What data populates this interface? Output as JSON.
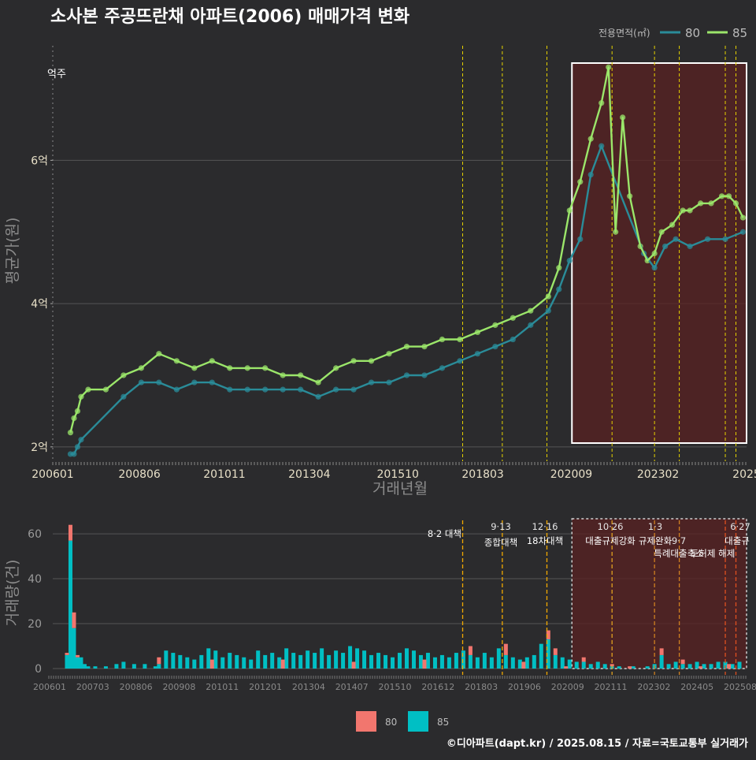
{
  "title": "소사본 주공뜨란채 아파트(2006) 매매가격 변화",
  "legend": {
    "title": "전용면적(㎡)",
    "items": [
      {
        "label": "80",
        "color": "#2a8c99"
      },
      {
        "label": "85",
        "color": "#9be66a"
      }
    ]
  },
  "bar_legend": [
    {
      "label": "80",
      "color": "#f2766e"
    },
    {
      "label": "85",
      "color": "#00bfc4"
    }
  ],
  "footer": "©디아파트(dapt.kr) / 2025.08.15 / 자료=국토교통부 실거래가",
  "top_side_label": "억주",
  "chart_data": [
    {
      "type": "line",
      "title": "소사본 주공뜨란채 아파트(2006) 매매가격 변화",
      "xlabel": "거래년월",
      "ylabel": "평균가(원)",
      "x_ticks": [
        "200601",
        "200806",
        "201011",
        "201304",
        "201510",
        "201803",
        "202009",
        "202302",
        "2025"
      ],
      "y_ticks": [
        "2억",
        "4억",
        "6억"
      ],
      "y_tick_values": [
        2,
        4,
        6
      ],
      "ylim": [
        1.8,
        7.6
      ],
      "xlim": [
        2006.0,
        2025.6
      ],
      "highlight_range": [
        2020.6,
        2025.6
      ],
      "policy_lines": [
        2017.58,
        2018.7,
        2019.96,
        2021.8,
        2023.0,
        2023.7,
        2025.0,
        2025.3
      ],
      "series": [
        {
          "name": "80",
          "color": "#2a8c99",
          "x": [
            2006.5,
            2006.6,
            2006.7,
            2006.8,
            2008.0,
            2008.5,
            2009.0,
            2009.5,
            2010.0,
            2010.5,
            2011.0,
            2011.5,
            2012.0,
            2012.5,
            2013.0,
            2013.5,
            2014.0,
            2014.5,
            2015.0,
            2015.5,
            2016.0,
            2016.5,
            2017.0,
            2017.5,
            2018.0,
            2018.5,
            2019.0,
            2019.5,
            2020.0,
            2020.3,
            2020.6,
            2020.9,
            2021.2,
            2021.5,
            2022.7,
            2023.0,
            2023.3,
            2023.6,
            2024.0,
            2024.5,
            2025.0,
            2025.5
          ],
          "y": [
            1.9,
            1.9,
            2.0,
            2.1,
            2.7,
            2.9,
            2.9,
            2.8,
            2.9,
            2.9,
            2.8,
            2.8,
            2.8,
            2.8,
            2.8,
            2.7,
            2.8,
            2.8,
            2.9,
            2.9,
            3.0,
            3.0,
            3.1,
            3.2,
            3.3,
            3.4,
            3.5,
            3.7,
            3.9,
            4.2,
            4.6,
            4.9,
            5.8,
            6.2,
            4.7,
            4.5,
            4.8,
            4.9,
            4.8,
            4.9,
            4.9,
            5.0
          ]
        },
        {
          "name": "85",
          "color": "#9be66a",
          "x": [
            2006.5,
            2006.6,
            2006.7,
            2006.8,
            2007.0,
            2007.5,
            2008.0,
            2008.5,
            2009.0,
            2009.5,
            2010.0,
            2010.5,
            2011.0,
            2011.5,
            2012.0,
            2012.5,
            2013.0,
            2013.5,
            2014.0,
            2014.5,
            2015.0,
            2015.5,
            2016.0,
            2016.5,
            2017.0,
            2017.5,
            2018.0,
            2018.5,
            2019.0,
            2019.5,
            2020.0,
            2020.3,
            2020.6,
            2020.9,
            2021.2,
            2021.5,
            2021.7,
            2021.9,
            2022.1,
            2022.3,
            2022.6,
            2022.8,
            2023.0,
            2023.2,
            2023.5,
            2023.8,
            2024.0,
            2024.3,
            2024.6,
            2024.9,
            2025.1,
            2025.3,
            2025.5
          ],
          "y": [
            2.2,
            2.4,
            2.5,
            2.7,
            2.8,
            2.8,
            3.0,
            3.1,
            3.3,
            3.2,
            3.1,
            3.2,
            3.1,
            3.1,
            3.1,
            3.0,
            3.0,
            2.9,
            3.1,
            3.2,
            3.2,
            3.3,
            3.4,
            3.4,
            3.5,
            3.5,
            3.6,
            3.7,
            3.8,
            3.9,
            4.1,
            4.5,
            5.3,
            5.7,
            6.3,
            6.8,
            7.3,
            5.0,
            6.6,
            5.5,
            4.8,
            4.6,
            4.7,
            5.0,
            5.1,
            5.3,
            5.3,
            5.4,
            5.4,
            5.5,
            5.5,
            5.4,
            5.2
          ]
        }
      ]
    },
    {
      "type": "bar",
      "xlabel": "",
      "ylabel": "거래량(건)",
      "x_ticks": [
        "200601",
        "200703",
        "200806",
        "200908",
        "201011",
        "201201",
        "201304",
        "201407",
        "201510",
        "201612",
        "201803",
        "201906",
        "202009",
        "202111",
        "202302",
        "202405",
        "202508"
      ],
      "y_ticks": [
        "0",
        "20",
        "40",
        "60"
      ],
      "y_tick_values": [
        0,
        20,
        40,
        60
      ],
      "ylim": [
        0,
        66
      ],
      "xlim": [
        2006.0,
        2025.6
      ],
      "highlight_range": [
        2020.6,
        2025.6
      ],
      "annotations": [
        {
          "date": "8·2",
          "label": "8·2 대책",
          "x": 2017.58
        },
        {
          "date": "9·13",
          "label": "종합대책",
          "x": 2018.7
        },
        {
          "date": "12·16",
          "label": "18차대책",
          "x": 2019.96
        },
        {
          "date": "10·26",
          "label": "대출규제강화",
          "x": 2021.8
        },
        {
          "date": "1·3",
          "label": "규제완화",
          "x": 2023.0
        },
        {
          "date": "9·7",
          "label": "특례대출축소",
          "x": 2023.7
        },
        {
          "date": "",
          "label": "토허제 해제",
          "x": 2025.0
        },
        {
          "date": "6·27",
          "label": "대출규",
          "x": 2025.3
        }
      ],
      "series": [
        {
          "name": "80",
          "color": "#f2766e",
          "x": [
            2006.4,
            2006.5,
            2006.6,
            2006.7,
            2009.0,
            2010.5,
            2012.5,
            2014.5,
            2016.5,
            2017.8,
            2018.8,
            2019.3,
            2020.0,
            2020.2,
            2020.5,
            2021.0,
            2021.8,
            2022.3,
            2023.2,
            2023.8,
            2024.3,
            2025.1
          ],
          "values": [
            1,
            7,
            7,
            1,
            3,
            4,
            4,
            3,
            4,
            4,
            5,
            3,
            4,
            3,
            1,
            2,
            1,
            1,
            3,
            2,
            1,
            2
          ]
        },
        {
          "name": "85",
          "color": "#00bfc4",
          "x": [
            2006.4,
            2006.5,
            2006.6,
            2006.7,
            2006.8,
            2006.9,
            2007.0,
            2007.2,
            2007.5,
            2007.8,
            2008.0,
            2008.3,
            2008.6,
            2008.9,
            2009.0,
            2009.2,
            2009.4,
            2009.6,
            2009.8,
            2010.0,
            2010.2,
            2010.4,
            2010.6,
            2010.8,
            2011.0,
            2011.2,
            2011.4,
            2011.6,
            2011.8,
            2012.0,
            2012.2,
            2012.4,
            2012.6,
            2012.8,
            2013.0,
            2013.2,
            2013.4,
            2013.6,
            2013.8,
            2014.0,
            2014.2,
            2014.4,
            2014.6,
            2014.8,
            2015.0,
            2015.2,
            2015.4,
            2015.6,
            2015.8,
            2016.0,
            2016.2,
            2016.4,
            2016.6,
            2016.8,
            2017.0,
            2017.2,
            2017.4,
            2017.6,
            2017.8,
            2018.0,
            2018.2,
            2018.4,
            2018.6,
            2018.8,
            2019.0,
            2019.2,
            2019.4,
            2019.6,
            2019.8,
            2020.0,
            2020.2,
            2020.4,
            2020.6,
            2020.8,
            2021.0,
            2021.2,
            2021.4,
            2021.6,
            2021.8,
            2022.0,
            2022.4,
            2022.8,
            2023.0,
            2023.2,
            2023.4,
            2023.6,
            2023.8,
            2024.0,
            2024.2,
            2024.4,
            2024.6,
            2024.8,
            2025.0,
            2025.2,
            2025.4
          ],
          "values": [
            6,
            57,
            18,
            5,
            5,
            2,
            1,
            1,
            1,
            2,
            3,
            2,
            2,
            1,
            2,
            8,
            7,
            6,
            5,
            4,
            6,
            9,
            8,
            5,
            7,
            6,
            5,
            4,
            8,
            6,
            7,
            5,
            9,
            7,
            6,
            8,
            7,
            9,
            6,
            8,
            7,
            10,
            9,
            8,
            6,
            7,
            6,
            5,
            7,
            9,
            8,
            6,
            7,
            5,
            6,
            5,
            7,
            8,
            6,
            5,
            7,
            5,
            9,
            6,
            5,
            4,
            5,
            6,
            11,
            13,
            6,
            5,
            4,
            3,
            3,
            2,
            3,
            2,
            1,
            1,
            1,
            1,
            2,
            6,
            2,
            3,
            2,
            2,
            3,
            2,
            2,
            3,
            3,
            2,
            3
          ]
        }
      ]
    }
  ]
}
